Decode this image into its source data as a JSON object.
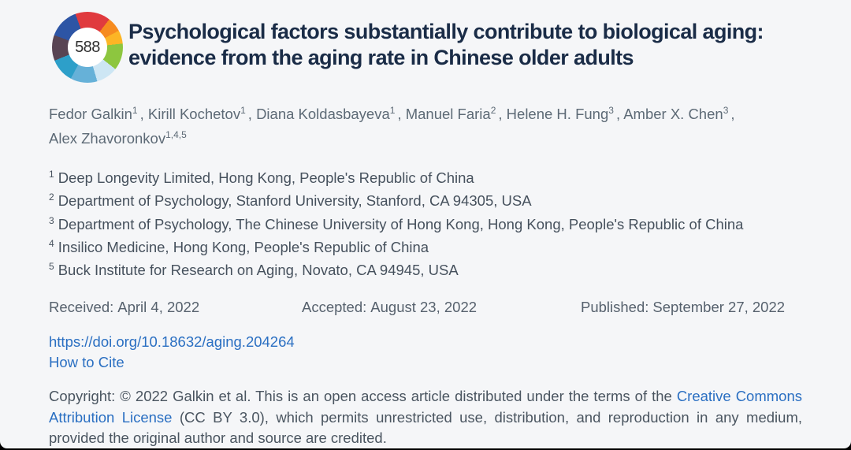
{
  "badge": {
    "score": "588"
  },
  "title": {
    "text": "Psychological factors substantially contribute to biological aging: evidence from the aging rate in Chinese older adults"
  },
  "authors": {
    "separator": ",",
    "list": [
      {
        "name": "Fedor Galkin",
        "sup": "1"
      },
      {
        "name": "Kirill Kochetov",
        "sup": "1"
      },
      {
        "name": "Diana Koldasbayeva",
        "sup": "1"
      },
      {
        "name": "Manuel Faria",
        "sup": "2"
      },
      {
        "name": "Helene H. Fung",
        "sup": "3"
      },
      {
        "name": "Amber X. Chen",
        "sup": "3"
      },
      {
        "name": "Alex Zhavoronkov",
        "sup": "1,4,5"
      }
    ]
  },
  "affiliations": [
    {
      "sup": "1",
      "text": "Deep Longevity Limited, Hong Kong, People's Republic of China"
    },
    {
      "sup": "2",
      "text": "Department of Psychology, Stanford University, Stanford, CA 94305, USA"
    },
    {
      "sup": "3",
      "text": "Department of Psychology, The Chinese University of Hong Kong, Hong Kong, People's Republic of China"
    },
    {
      "sup": "4",
      "text": "Insilico Medicine, Hong Kong, People's Republic of China"
    },
    {
      "sup": "5",
      "text": "Buck Institute for Research on Aging, Novato, CA 94945, USA"
    }
  ],
  "dates": [
    {
      "label": "Received:",
      "value": "April 4, 2022"
    },
    {
      "label": "Accepted:",
      "value": "August 23, 2022"
    },
    {
      "label": "Published:",
      "value": "September 27, 2022"
    }
  ],
  "links": {
    "doi": "https://doi.org/10.18632/aging.204264",
    "how_to_cite": "How to Cite"
  },
  "copyright": {
    "before_link": "Copyright: © 2022 Galkin et al. This is an open access article distributed under the terms of the ",
    "link": "Creative Commons Attribution License",
    "after_link": " (CC BY 3.0), which permits unrestricted use, distribution, and reproduction in any medium, provided the original author and source are credited."
  },
  "colors": {
    "background": "#f5f6f8",
    "frame": "#000000",
    "title_text": "#1a2c47",
    "body_text": "#4a5560",
    "muted_text": "#5d6a76",
    "link_blue": "#2a6fc2",
    "badge_segments": [
      "#e03a3e",
      "#f68b1f",
      "#fcb525",
      "#8dc63f",
      "#cde6f4",
      "#66b1d8",
      "#2d9fc9",
      "#584453",
      "#2d55a5"
    ]
  }
}
